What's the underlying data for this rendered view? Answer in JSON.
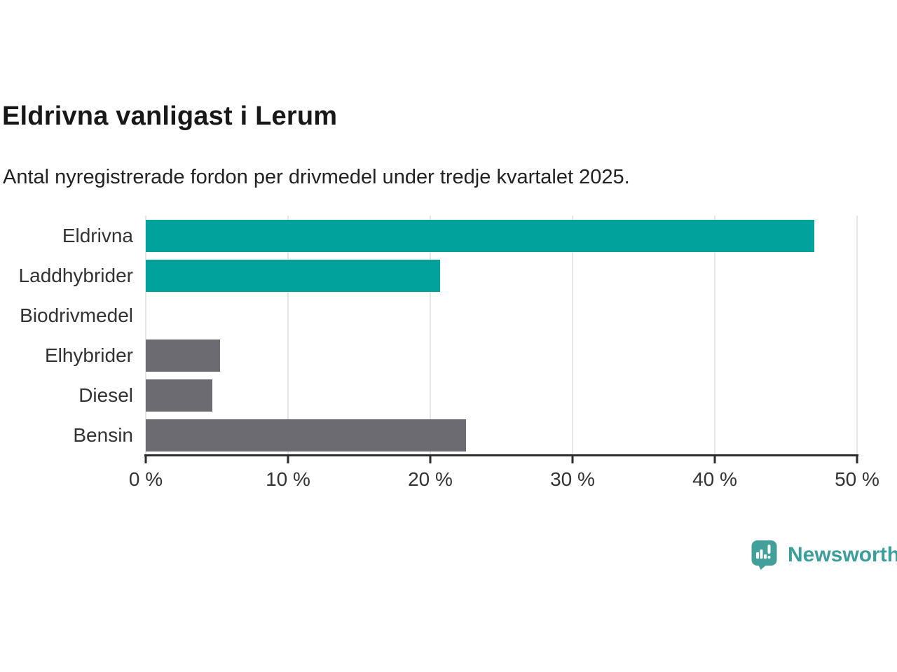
{
  "header": {
    "title": "Eldrivna vanligast i Lerum",
    "subtitle": "Antal nyregistrerade fordon per drivmedel under tredje kvartalet 2025."
  },
  "chart_data": {
    "type": "bar",
    "orientation": "horizontal",
    "title": "Eldrivna vanligast i Lerum",
    "subtitle": "Antal nyregistrerade fordon per drivmedel under tredje kvartalet 2025.",
    "categories": [
      "Eldrivna",
      "Laddhybrider",
      "Biodrivmedel",
      "Elhybrider",
      "Diesel",
      "Bensin"
    ],
    "values": [
      47.0,
      20.7,
      0,
      5.2,
      4.7,
      22.5
    ],
    "unit": "%",
    "xlim": [
      0,
      50
    ],
    "x_ticks": [
      0,
      10,
      20,
      30,
      40,
      50
    ],
    "x_tick_labels": [
      "0 %",
      "10 %",
      "20 %",
      "30 %",
      "40 %",
      "50 %"
    ],
    "grid": true,
    "legend": "none",
    "bar_colors": [
      "#00a29b",
      "#00a29b",
      "#6b6b71",
      "#6b6b71",
      "#6b6b71",
      "#6b6b71"
    ],
    "colors": {
      "highlight": "#00a29b",
      "default": "#6b6b71",
      "gridline": "#e7e7e7",
      "axis": "#2d2d2d"
    }
  },
  "footer": {
    "brand": "Newsworthy",
    "brand_color": "#3b9e9a",
    "logo_icon": "newsworthy-speech-bubble-bar-chart-icon"
  }
}
